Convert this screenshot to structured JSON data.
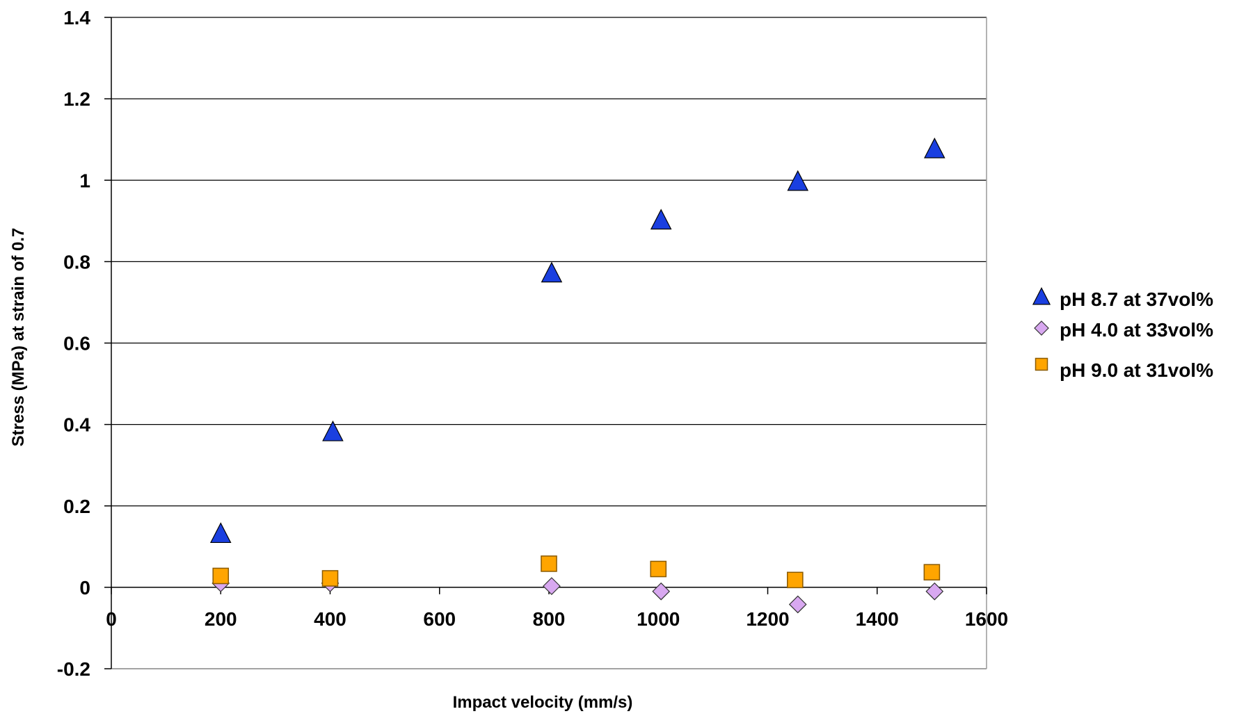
{
  "chart_data": {
    "type": "scatter",
    "xlabel": "Impact velocity (mm/s)",
    "ylabel": "Stress (MPa) at strain of 0.7",
    "xlim": [
      0,
      1600
    ],
    "ylim": [
      -0.2,
      1.4
    ],
    "x_ticks": [
      0,
      200,
      400,
      600,
      800,
      1000,
      1200,
      1400,
      1600
    ],
    "x_tick_labels": [
      "0",
      "200",
      "400",
      "600",
      "800",
      "1000",
      "1200",
      "1400",
      "1600"
    ],
    "y_ticks": [
      -0.2,
      0,
      0.2,
      0.4,
      0.6,
      0.8,
      1,
      1.2,
      1.4
    ],
    "y_tick_labels": [
      "-0.2",
      "0",
      "0.2",
      "0.4",
      "0.6",
      "0.8",
      "1",
      "1.2",
      "1.4"
    ],
    "grid": "horizontal",
    "legend_position": "right",
    "series": [
      {
        "name": "pH 8.7 at 37vol%",
        "marker": "triangle",
        "color": "#1a3fe0",
        "points": [
          {
            "x": 200,
            "y": 0.13
          },
          {
            "x": 405,
            "y": 0.38
          },
          {
            "x": 805,
            "y": 0.77
          },
          {
            "x": 1005,
            "y": 0.9
          },
          {
            "x": 1255,
            "y": 0.995
          },
          {
            "x": 1505,
            "y": 1.075
          }
        ]
      },
      {
        "name": "pH 4.0 at 33vol%",
        "marker": "diamond",
        "color": "#d8a8f0",
        "points": [
          {
            "x": 200,
            "y": 0.01
          },
          {
            "x": 400,
            "y": 0.01
          },
          {
            "x": 805,
            "y": 0.003
          },
          {
            "x": 1005,
            "y": -0.01
          },
          {
            "x": 1255,
            "y": -0.042
          },
          {
            "x": 1505,
            "y": -0.01
          }
        ]
      },
      {
        "name": "pH 9.0 at 31vol%",
        "marker": "square",
        "color": "#ffa500",
        "points": [
          {
            "x": 200,
            "y": 0.028
          },
          {
            "x": 400,
            "y": 0.022
          },
          {
            "x": 800,
            "y": 0.058
          },
          {
            "x": 1000,
            "y": 0.045
          },
          {
            "x": 1250,
            "y": 0.018
          },
          {
            "x": 1500,
            "y": 0.037
          }
        ]
      }
    ]
  }
}
